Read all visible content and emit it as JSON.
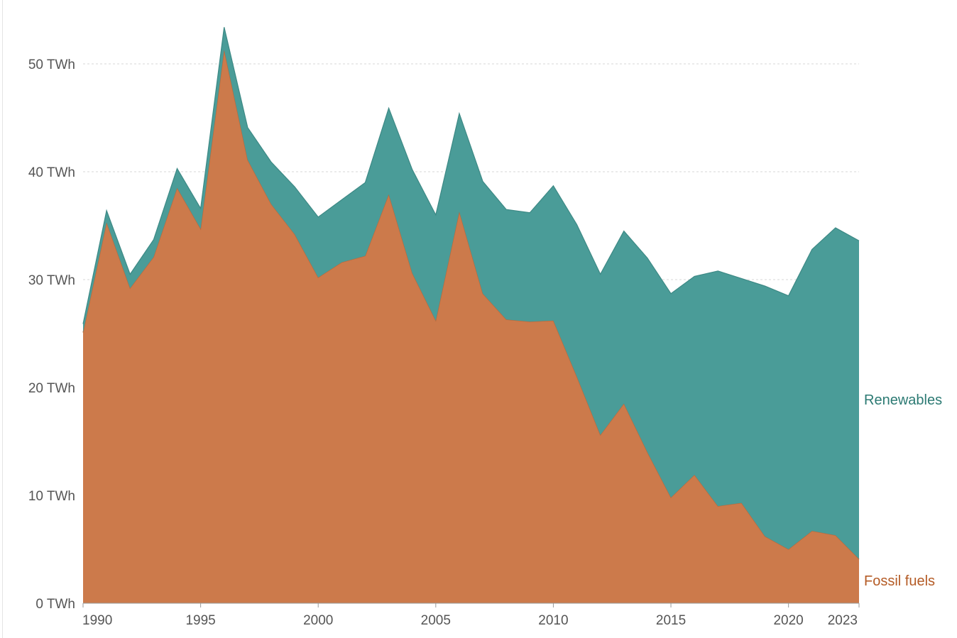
{
  "chart_data": {
    "type": "area",
    "stacked": true,
    "x": [
      1990,
      1991,
      1992,
      1993,
      1994,
      1995,
      1996,
      1997,
      1998,
      1999,
      2000,
      2001,
      2002,
      2003,
      2004,
      2005,
      2006,
      2007,
      2008,
      2009,
      2010,
      2011,
      2012,
      2013,
      2014,
      2015,
      2016,
      2017,
      2018,
      2019,
      2020,
      2021,
      2022,
      2023
    ],
    "x_ticks": [
      "1990",
      "1995",
      "2000",
      "2005",
      "2010",
      "2015",
      "2020",
      "2023"
    ],
    "y_ticks": [
      "0 TWh",
      "10 TWh",
      "20 TWh",
      "30 TWh",
      "40 TWh",
      "50 TWh"
    ],
    "ylim": [
      0,
      55
    ],
    "grid": true,
    "legend_placement": "inline-right",
    "series": [
      {
        "name": "Fossil fuels",
        "color": "#cc7a4b",
        "label_color": "#b45b25",
        "values": [
          25.1,
          35.3,
          29.2,
          32.1,
          38.5,
          34.7,
          51.3,
          41.1,
          37.0,
          34.2,
          30.2,
          31.6,
          32.2,
          37.9,
          30.6,
          26.2,
          36.3,
          28.7,
          26.3,
          26.1,
          26.2,
          21.0,
          15.6,
          18.5,
          14.0,
          9.8,
          11.9,
          9.0,
          9.3,
          6.2,
          5.0,
          6.7,
          6.3,
          4.1
        ]
      },
      {
        "name": "Renewables",
        "color": "#4a9c98",
        "label_color": "#2c7a73",
        "values": [
          0.8,
          1.1,
          1.3,
          1.6,
          1.8,
          1.9,
          2.1,
          3.0,
          3.9,
          4.4,
          5.6,
          5.8,
          6.8,
          8.0,
          9.6,
          9.8,
          9.1,
          10.4,
          10.2,
          10.1,
          12.5,
          14.1,
          14.9,
          16.0,
          18.0,
          18.9,
          18.4,
          21.8,
          20.8,
          23.2,
          23.5,
          26.1,
          28.5,
          29.5
        ]
      }
    ]
  }
}
